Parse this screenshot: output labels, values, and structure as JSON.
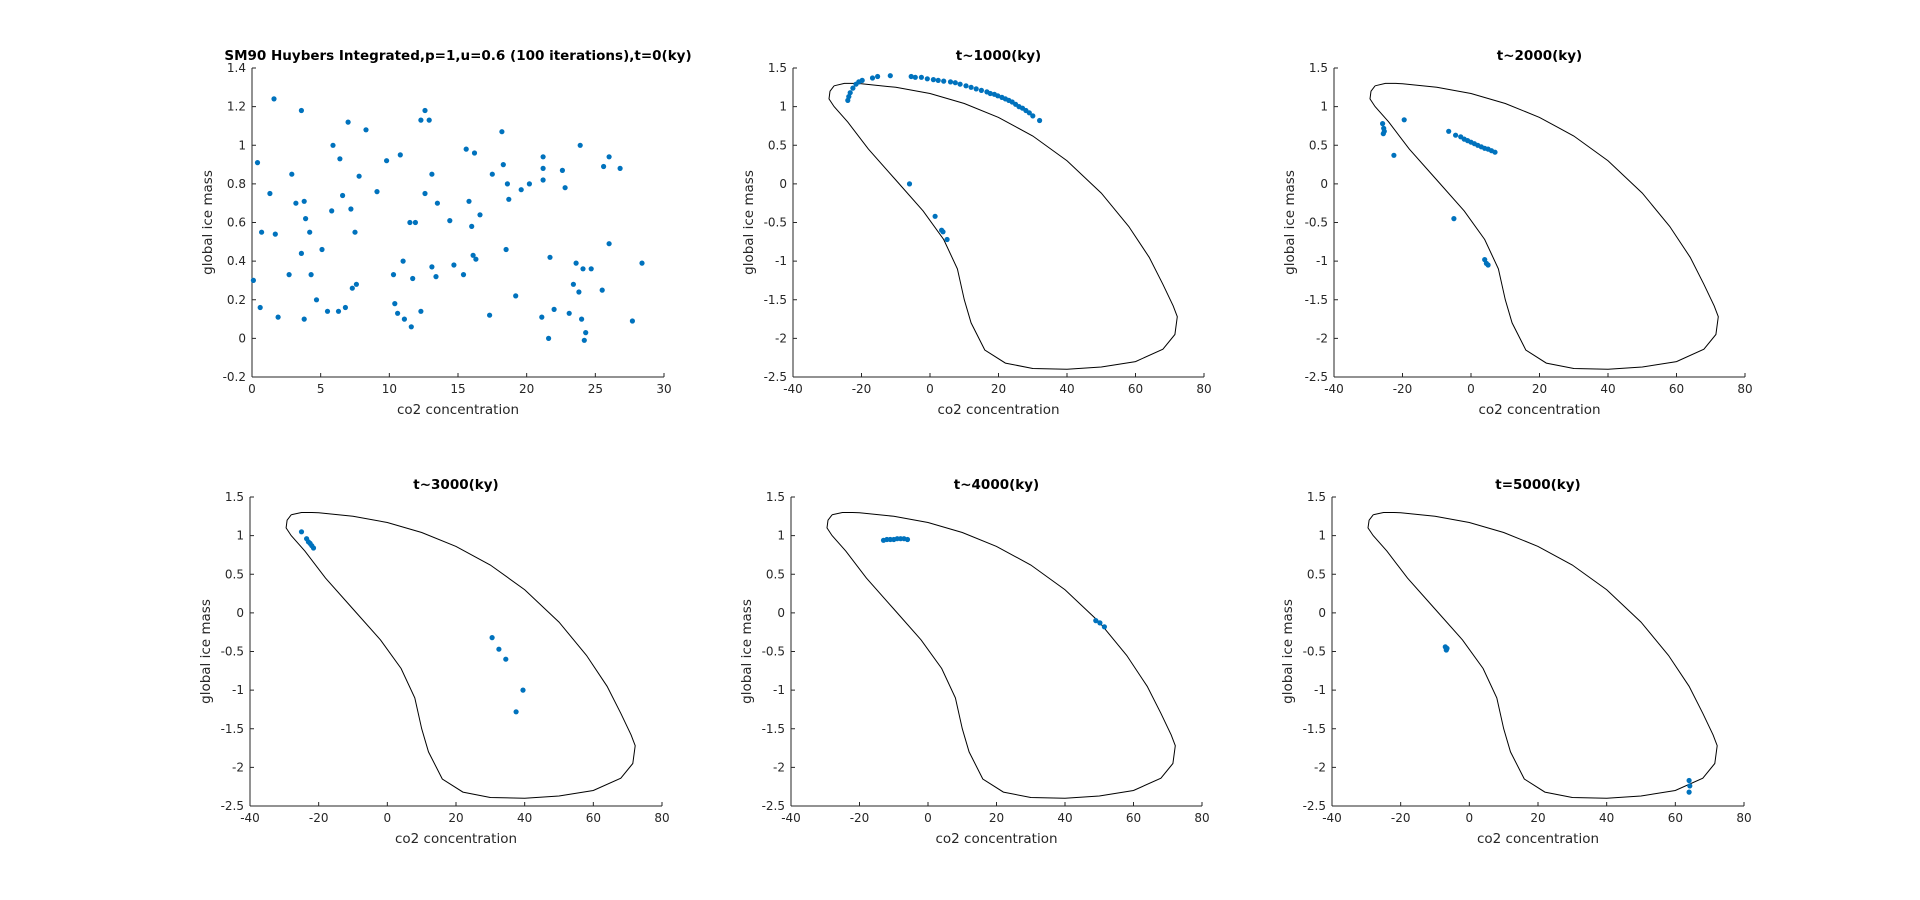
{
  "chart_data": [
    {
      "type": "scatter",
      "title": "SM90 Huybers Integrated,p=1,u=0.6 (100 iterations),t=0(ky)",
      "xlabel": "co2 concentration",
      "ylabel": "global ice mass",
      "xlim": [
        0,
        30
      ],
      "ylim": [
        -0.2,
        1.4
      ],
      "xticks": [
        "0",
        "5",
        "10",
        "15",
        "20",
        "25",
        "30"
      ],
      "yticks": [
        "-0.2",
        "0",
        "0.2",
        "0.4",
        "0.6",
        "0.8",
        "1",
        "1.2",
        "1.4"
      ],
      "grid": false,
      "points": [
        [
          0.1,
          0.3
        ],
        [
          0.4,
          0.91
        ],
        [
          0.6,
          0.16
        ],
        [
          0.7,
          0.55
        ],
        [
          1.3,
          0.75
        ],
        [
          1.6,
          1.24
        ],
        [
          1.7,
          0.54
        ],
        [
          1.9,
          0.11
        ],
        [
          2.7,
          0.33
        ],
        [
          2.9,
          0.85
        ],
        [
          3.2,
          0.7
        ],
        [
          3.6,
          1.18
        ],
        [
          3.6,
          0.44
        ],
        [
          3.8,
          0.71
        ],
        [
          3.8,
          0.1
        ],
        [
          3.9,
          0.62
        ],
        [
          4.2,
          0.55
        ],
        [
          4.3,
          0.33
        ],
        [
          4.7,
          0.2
        ],
        [
          5.1,
          0.46
        ],
        [
          5.5,
          0.14
        ],
        [
          5.8,
          0.66
        ],
        [
          5.9,
          1.0
        ],
        [
          6.3,
          0.14
        ],
        [
          6.4,
          0.93
        ],
        [
          6.6,
          0.74
        ],
        [
          6.8,
          0.16
        ],
        [
          7.0,
          1.12
        ],
        [
          7.2,
          0.67
        ],
        [
          7.3,
          0.26
        ],
        [
          7.5,
          0.55
        ],
        [
          7.6,
          0.28
        ],
        [
          7.8,
          0.84
        ],
        [
          8.3,
          1.08
        ],
        [
          9.1,
          0.76
        ],
        [
          9.8,
          0.92
        ],
        [
          10.3,
          0.33
        ],
        [
          10.4,
          0.18
        ],
        [
          10.6,
          0.13
        ],
        [
          10.8,
          0.95
        ],
        [
          11.0,
          0.4
        ],
        [
          11.1,
          0.1
        ],
        [
          11.5,
          0.6
        ],
        [
          11.6,
          0.06
        ],
        [
          11.7,
          0.31
        ],
        [
          11.9,
          0.6
        ],
        [
          12.3,
          1.13
        ],
        [
          12.3,
          0.14
        ],
        [
          12.6,
          1.18
        ],
        [
          12.6,
          0.75
        ],
        [
          12.9,
          1.13
        ],
        [
          13.1,
          0.85
        ],
        [
          13.1,
          0.37
        ],
        [
          13.4,
          0.32
        ],
        [
          13.5,
          0.7
        ],
        [
          14.4,
          0.61
        ],
        [
          14.7,
          0.38
        ],
        [
          15.4,
          0.33
        ],
        [
          15.6,
          0.98
        ],
        [
          15.8,
          0.71
        ],
        [
          16.0,
          0.58
        ],
        [
          16.1,
          0.43
        ],
        [
          16.2,
          0.96
        ],
        [
          16.3,
          0.41
        ],
        [
          16.6,
          0.64
        ],
        [
          17.3,
          0.12
        ],
        [
          17.5,
          0.85
        ],
        [
          18.2,
          1.07
        ],
        [
          18.3,
          0.9
        ],
        [
          18.5,
          0.46
        ],
        [
          18.6,
          0.8
        ],
        [
          18.7,
          0.72
        ],
        [
          19.2,
          0.22
        ],
        [
          19.6,
          0.77
        ],
        [
          20.2,
          0.8
        ],
        [
          21.1,
          0.11
        ],
        [
          21.2,
          0.94
        ],
        [
          21.2,
          0.88
        ],
        [
          21.2,
          0.82
        ],
        [
          21.6,
          0.0
        ],
        [
          21.7,
          0.42
        ],
        [
          22.0,
          0.15
        ],
        [
          22.6,
          0.87
        ],
        [
          22.8,
          0.78
        ],
        [
          23.1,
          0.13
        ],
        [
          23.4,
          0.28
        ],
        [
          23.6,
          0.39
        ],
        [
          23.8,
          0.24
        ],
        [
          23.9,
          1.0
        ],
        [
          24.0,
          0.1
        ],
        [
          24.1,
          0.36
        ],
        [
          24.2,
          -0.01
        ],
        [
          24.3,
          0.03
        ],
        [
          24.7,
          0.36
        ],
        [
          25.5,
          0.25
        ],
        [
          25.6,
          0.89
        ],
        [
          26.0,
          0.94
        ],
        [
          26.0,
          0.49
        ],
        [
          26.8,
          0.88
        ],
        [
          27.7,
          0.09
        ],
        [
          28.4,
          0.39
        ]
      ]
    },
    {
      "type": "scatter",
      "title": "t~1000(ky)",
      "xlabel": "co2 concentration",
      "ylabel": "global ice mass",
      "xlim": [
        -40,
        80
      ],
      "ylim": [
        -2.5,
        1.5
      ],
      "xticks": [
        "-40",
        "-20",
        "0",
        "20",
        "40",
        "60",
        "80"
      ],
      "yticks": [
        "-2.5",
        "-2",
        "-1.5",
        "-1",
        "-0.5",
        "0",
        "0.5",
        "1",
        "1.5"
      ],
      "grid": false,
      "curve": true,
      "points": [
        [
          -24,
          1.08
        ],
        [
          -23.7,
          1.13
        ],
        [
          -23.3,
          1.18
        ],
        [
          -22.5,
          1.24
        ],
        [
          -21.6,
          1.29
        ],
        [
          -20.8,
          1.32
        ],
        [
          -19.8,
          1.34
        ],
        [
          -16.8,
          1.37
        ],
        [
          -15.3,
          1.39
        ],
        [
          -11.6,
          1.4
        ],
        [
          -5.5,
          1.39
        ],
        [
          -4.3,
          1.38
        ],
        [
          -2.5,
          1.38
        ],
        [
          -0.8,
          1.36
        ],
        [
          1,
          1.35
        ],
        [
          2.4,
          1.34
        ],
        [
          4,
          1.33
        ],
        [
          6,
          1.32
        ],
        [
          7.4,
          1.31
        ],
        [
          8.8,
          1.29
        ],
        [
          10.5,
          1.27
        ],
        [
          12,
          1.25
        ],
        [
          13.5,
          1.23
        ],
        [
          15,
          1.21
        ],
        [
          16.6,
          1.19
        ],
        [
          17.6,
          1.17
        ],
        [
          18.8,
          1.16
        ],
        [
          19.8,
          1.14
        ],
        [
          21,
          1.12
        ],
        [
          22,
          1.1
        ],
        [
          23,
          1.08
        ],
        [
          24,
          1.06
        ],
        [
          25,
          1.03
        ],
        [
          26,
          1.0
        ],
        [
          27,
          0.98
        ],
        [
          28,
          0.95
        ],
        [
          29,
          0.92
        ],
        [
          30,
          0.88
        ],
        [
          32,
          0.82
        ],
        [
          -6,
          0.0
        ],
        [
          1.5,
          -0.42
        ],
        [
          3.4,
          -0.6
        ],
        [
          3.8,
          -0.62
        ],
        [
          5,
          -0.72
        ]
      ]
    },
    {
      "type": "scatter",
      "title": "t~2000(ky)",
      "xlabel": "co2 concentration",
      "ylabel": "global ice mass",
      "xlim": [
        -40,
        80
      ],
      "ylim": [
        -2.5,
        1.5
      ],
      "xticks": [
        "-40",
        "-20",
        "0",
        "20",
        "40",
        "60",
        "80"
      ],
      "yticks": [
        "-2.5",
        "-2",
        "-1.5",
        "-1",
        "-0.5",
        "0",
        "0.5",
        "1",
        "1.5"
      ],
      "grid": false,
      "curve": true,
      "points": [
        [
          -25.8,
          0.78
        ],
        [
          -25.5,
          0.72
        ],
        [
          -25.3,
          0.68
        ],
        [
          -25.6,
          0.65
        ],
        [
          -22.5,
          0.37
        ],
        [
          -19.5,
          0.83
        ],
        [
          -6.5,
          0.68
        ],
        [
          -4.5,
          0.63
        ],
        [
          -3,
          0.61
        ],
        [
          -2,
          0.58
        ],
        [
          -1,
          0.56
        ],
        [
          0,
          0.54
        ],
        [
          1,
          0.52
        ],
        [
          2,
          0.5
        ],
        [
          3,
          0.48
        ],
        [
          4,
          0.46
        ],
        [
          5,
          0.45
        ],
        [
          6,
          0.43
        ],
        [
          7,
          0.41
        ],
        [
          -5,
          -0.45
        ],
        [
          4,
          -0.98
        ],
        [
          4.5,
          -1.03
        ],
        [
          5,
          -1.05
        ]
      ]
    },
    {
      "type": "scatter",
      "title": "t~3000(ky)",
      "xlabel": "co2 concentration",
      "ylabel": "global ice mass",
      "xlim": [
        -40,
        80
      ],
      "ylim": [
        -2.5,
        1.5
      ],
      "xticks": [
        "-40",
        "-20",
        "0",
        "20",
        "40",
        "60",
        "80"
      ],
      "yticks": [
        "-2.5",
        "-2",
        "-1.5",
        "-1",
        "-0.5",
        "0",
        "0.5",
        "1",
        "1.5"
      ],
      "grid": false,
      "curve": true,
      "points": [
        [
          -25,
          1.05
        ],
        [
          -23.5,
          0.96
        ],
        [
          -23,
          0.92
        ],
        [
          -22.5,
          0.9
        ],
        [
          -22,
          0.87
        ],
        [
          -21.5,
          0.84
        ],
        [
          30.5,
          -0.32
        ],
        [
          32.5,
          -0.47
        ],
        [
          34.5,
          -0.6
        ],
        [
          39.5,
          -1.0
        ],
        [
          37.5,
          -1.28
        ]
      ]
    },
    {
      "type": "scatter",
      "title": "t~4000(ky)",
      "xlabel": "co2 concentration",
      "ylabel": "global ice mass",
      "xlim": [
        -40,
        80
      ],
      "ylim": [
        -2.5,
        1.5
      ],
      "xticks": [
        "-40",
        "-20",
        "0",
        "20",
        "40",
        "60",
        "80"
      ],
      "yticks": [
        "-2.5",
        "-2",
        "-1.5",
        "-1",
        "-0.5",
        "0",
        "0.5",
        "1",
        "1.5"
      ],
      "grid": false,
      "curve": true,
      "points": [
        [
          -13,
          0.94
        ],
        [
          -12,
          0.95
        ],
        [
          -11,
          0.95
        ],
        [
          -10,
          0.95
        ],
        [
          -9,
          0.96
        ],
        [
          -8,
          0.96
        ],
        [
          -7,
          0.96
        ],
        [
          -6,
          0.95
        ],
        [
          49,
          -0.1
        ],
        [
          50.2,
          -0.13
        ],
        [
          51.5,
          -0.18
        ]
      ]
    },
    {
      "type": "scatter",
      "title": "t=5000(ky)",
      "xlabel": "co2 concentration",
      "ylabel": "global ice mass",
      "xlim": [
        -40,
        80
      ],
      "ylim": [
        -2.5,
        1.5
      ],
      "xticks": [
        "-40",
        "-20",
        "0",
        "20",
        "40",
        "60",
        "80"
      ],
      "yticks": [
        "-2.5",
        "-2",
        "-1.5",
        "-1",
        "-0.5",
        "0",
        "0.5",
        "1",
        "1.5"
      ],
      "grid": false,
      "curve": true,
      "points": [
        [
          -7,
          -0.44
        ],
        [
          -6.5,
          -0.46
        ],
        [
          -6.7,
          -0.48
        ],
        [
          64,
          -2.17
        ],
        [
          64.2,
          -2.24
        ],
        [
          64,
          -2.32
        ]
      ]
    }
  ],
  "limit_cycle": [
    [
      -28,
      1.27
    ],
    [
      -25,
      1.3
    ],
    [
      -22,
      1.3
    ],
    [
      -20,
      1.295
    ],
    [
      -10,
      1.25
    ],
    [
      0,
      1.17
    ],
    [
      10,
      1.04
    ],
    [
      20,
      0.86
    ],
    [
      30,
      0.62
    ],
    [
      40,
      0.3
    ],
    [
      50,
      -0.12
    ],
    [
      58,
      -0.55
    ],
    [
      64,
      -0.95
    ],
    [
      68,
      -1.3
    ],
    [
      71,
      -1.58
    ],
    [
      72.2,
      -1.72
    ],
    [
      71.5,
      -1.95
    ],
    [
      68,
      -2.14
    ],
    [
      60,
      -2.3
    ],
    [
      50,
      -2.37
    ],
    [
      40,
      -2.4
    ],
    [
      30,
      -2.39
    ],
    [
      22,
      -2.32
    ],
    [
      16,
      -2.15
    ],
    [
      12,
      -1.8
    ],
    [
      10,
      -1.5
    ],
    [
      8,
      -1.1
    ],
    [
      4,
      -0.72
    ],
    [
      -2,
      -0.35
    ],
    [
      -10,
      0.05
    ],
    [
      -18,
      0.45
    ],
    [
      -24,
      0.8
    ],
    [
      -28,
      1.0
    ],
    [
      -29.5,
      1.1
    ],
    [
      -29.2,
      1.2
    ],
    [
      -28,
      1.27
    ]
  ],
  "colors": {
    "marker": "#0072bd",
    "curve": "#000000",
    "axis": "#262626"
  }
}
